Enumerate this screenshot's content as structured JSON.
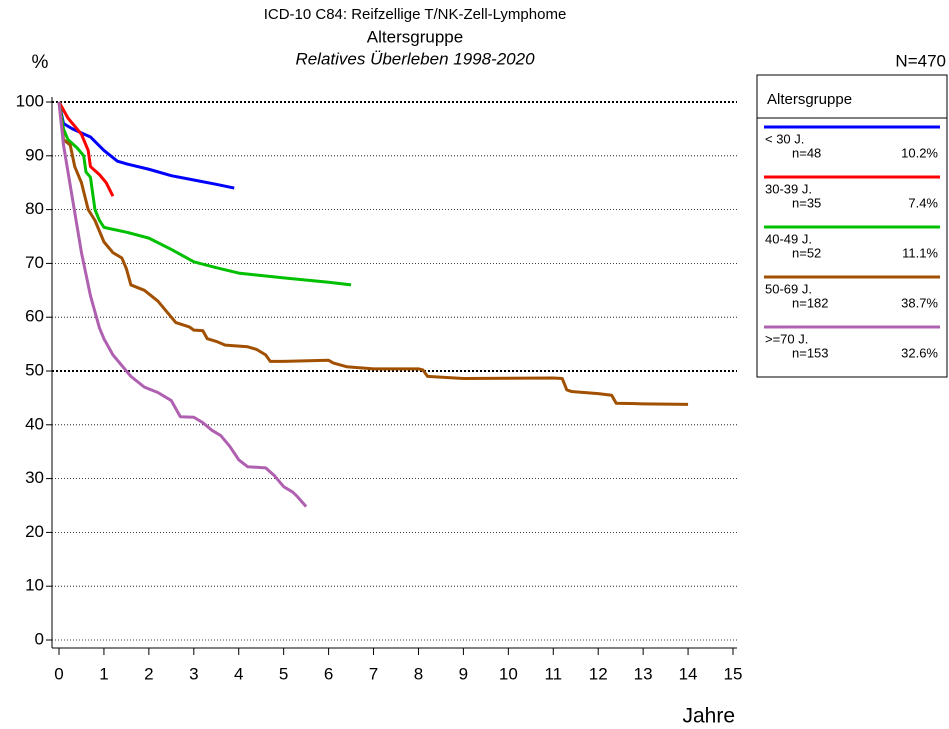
{
  "chart_data": {
    "type": "line",
    "title": "ICD-10 C84: Reifzellige T/NK-Zell-Lymphome",
    "subtitle": "Altersgruppe",
    "subtitle2": "Relatives Überleben 1998-2020",
    "y_label": "%",
    "x_label": "Jahre",
    "total_label": "N=470",
    "legend_title": "Altersgruppe",
    "xlim": [
      0,
      15
    ],
    "xticks": [
      0,
      1,
      2,
      3,
      4,
      5,
      6,
      7,
      8,
      9,
      10,
      11,
      12,
      13,
      14,
      15
    ],
    "ylim": [
      0,
      100
    ],
    "yticks": [
      0,
      10,
      20,
      30,
      40,
      50,
      60,
      70,
      80,
      90,
      100
    ],
    "grid": true,
    "reference_lines": [
      50,
      100
    ],
    "series": [
      {
        "name": "< 30 J.",
        "count_label": "n=48",
        "share_label": "10.2%",
        "color": "#0000ff",
        "x": [
          0,
          0.1,
          0.3,
          0.7,
          1,
          1.3,
          1.5,
          2,
          2.5,
          3,
          3.5,
          3.9
        ],
        "values": [
          100,
          96,
          95,
          93.5,
          91,
          89,
          88.5,
          87.5,
          86.3,
          85.5,
          84.7,
          84
        ]
      },
      {
        "name": "30-39 J.",
        "count_label": "n=35",
        "share_label": "7.4%",
        "color": "#ff0000",
        "x": [
          0,
          0.2,
          0.5,
          0.65,
          0.7,
          0.9,
          1.05,
          1.2
        ],
        "values": [
          100,
          97,
          94,
          91,
          88,
          86.5,
          85,
          82.5
        ]
      },
      {
        "name": "40-49 J.",
        "count_label": "n=52",
        "share_label": "11.1%",
        "color": "#00c000",
        "x": [
          0,
          0.1,
          0.2,
          0.4,
          0.55,
          0.6,
          0.7,
          0.8,
          0.9,
          1,
          1.5,
          2,
          2.5,
          3,
          3.5,
          4,
          5,
          6,
          6.5
        ],
        "values": [
          100,
          95,
          93,
          91.5,
          90,
          87,
          86,
          80,
          78,
          76.7,
          75.8,
          74.7,
          72.6,
          70.3,
          69.2,
          68.2,
          67.3,
          66.5,
          66
        ]
      },
      {
        "name": "50-69 J.",
        "count_label": "n=182",
        "share_label": "38.7%",
        "color": "#a05000",
        "x": [
          0,
          0.1,
          0.25,
          0.35,
          0.5,
          0.65,
          0.8,
          1,
          1.2,
          1.4,
          1.5,
          1.6,
          1.9,
          2.2,
          2.5,
          2.6,
          2.9,
          3,
          3.2,
          3.3,
          3.5,
          3.7,
          4.2,
          4.4,
          4.6,
          4.7,
          5,
          6,
          6.1,
          6.4,
          7,
          8,
          8.1,
          8.2,
          9,
          11,
          11.2,
          11.3,
          11.4,
          12,
          12.3,
          12.4,
          13,
          14
        ],
        "values": [
          100,
          93,
          92,
          88,
          85,
          80,
          78,
          74,
          72,
          71,
          69,
          66,
          65,
          63,
          60,
          59,
          58.2,
          57.6,
          57.5,
          56,
          55.5,
          54.8,
          54.5,
          54,
          53,
          51.8,
          51.8,
          52,
          51.5,
          50.8,
          50.4,
          50.4,
          50.2,
          49,
          48.6,
          48.7,
          48.6,
          46.5,
          46.2,
          45.8,
          45.5,
          44,
          43.9,
          43.8
        ]
      },
      {
        "name": ">=70 J.",
        "count_label": "n=153",
        "share_label": "32.6%",
        "color": "#b060b0",
        "x": [
          0,
          0.1,
          0.2,
          0.3,
          0.4,
          0.5,
          0.6,
          0.7,
          0.8,
          0.9,
          1,
          1.2,
          1.4,
          1.6,
          1.9,
          2.2,
          2.5,
          2.7,
          3,
          3.2,
          3.4,
          3.6,
          3.8,
          4,
          4.2,
          4.6,
          4.8,
          5,
          5.2,
          5.3,
          5.5
        ],
        "values": [
          100,
          92,
          87,
          82,
          77,
          72,
          68,
          64,
          61,
          58,
          56,
          53,
          51,
          49,
          47,
          46,
          44.5,
          41.5,
          41.4,
          40.4,
          39,
          38,
          36,
          33.5,
          32.2,
          32,
          30.5,
          28.5,
          27.5,
          26.7,
          24.8
        ]
      }
    ]
  }
}
